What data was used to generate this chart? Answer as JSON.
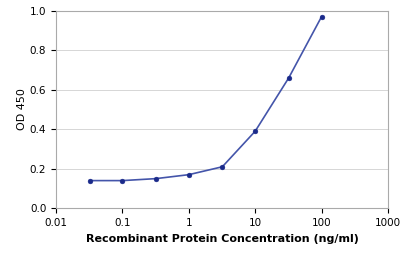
{
  "x_values": [
    0.032,
    0.1,
    0.32,
    1.0,
    3.2,
    10.0,
    32.0,
    100.0
  ],
  "y_values": [
    0.14,
    0.14,
    0.15,
    0.17,
    0.21,
    0.39,
    0.66,
    0.97
  ],
  "line_color": "#4455aa",
  "marker_color": "#1a2a8a",
  "marker_style": "o",
  "marker_size": 3.5,
  "line_width": 1.2,
  "xlabel": "Recombinant Protein Concentration (ng/ml)",
  "ylabel": "OD 450",
  "xlim": [
    0.01,
    1000
  ],
  "ylim": [
    0.0,
    1.0
  ],
  "yticks": [
    0.0,
    0.2,
    0.4,
    0.6,
    0.8,
    1.0
  ],
  "xtick_values": [
    0.01,
    0.1,
    1,
    10,
    100,
    1000
  ],
  "xtick_labels": [
    "0.01",
    "0.1",
    "1",
    "10",
    "100",
    "1000"
  ],
  "grid_color": "#d0d0d0",
  "background_color": "#ffffff",
  "xlabel_fontsize": 8,
  "ylabel_fontsize": 8,
  "tick_fontsize": 7.5,
  "xlabel_bold": true
}
